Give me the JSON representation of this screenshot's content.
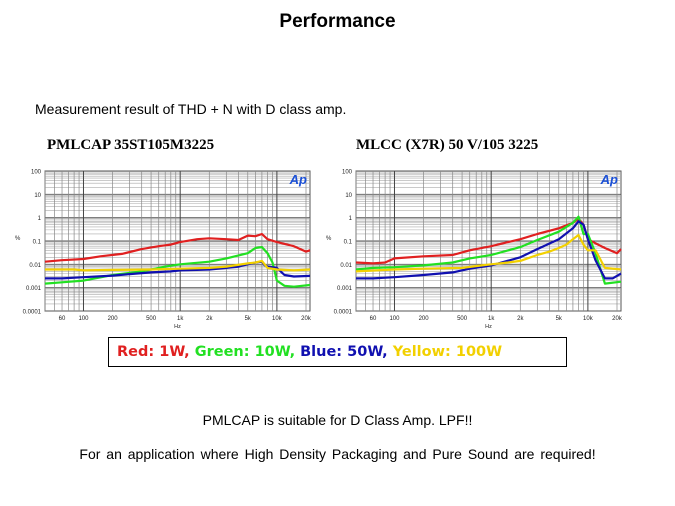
{
  "page": {
    "title": "Performance",
    "subtitle": "Measurement result of THD + N with D class amp.",
    "note1": "PMLCAP is suitable for D Class Amp. LPF!!",
    "note2": "For an application where High Density Packaging and Pure Sound are required!"
  },
  "legend": [
    {
      "text": "Red: 1W, ",
      "color": "#e02020"
    },
    {
      "text": "Green: 10W, ",
      "color": "#22e022"
    },
    {
      "text": "Blue: 50W, ",
      "color": "#1010b0"
    },
    {
      "text": "Yellow: 100W",
      "color": "#f2d000"
    }
  ],
  "chart_data": [
    {
      "type": "line",
      "title": "PMLCAP 35ST105M3225",
      "xlabel": "Hz",
      "ylabel": "%",
      "xscale": "log",
      "yscale": "log",
      "xlim": [
        40,
        22000
      ],
      "ylim": [
        0.0001,
        100
      ],
      "xticks": [
        {
          "v": 60,
          "t": "60"
        },
        {
          "v": 100,
          "t": "100"
        },
        {
          "v": 200,
          "t": "200"
        },
        {
          "v": 500,
          "t": "500"
        },
        {
          "v": 1000,
          "t": "1k"
        },
        {
          "v": 2000,
          "t": "2k"
        },
        {
          "v": 5000,
          "t": "5k"
        },
        {
          "v": 10000,
          "t": "10k"
        },
        {
          "v": 20000,
          "t": "20k"
        }
      ],
      "yticks": [
        {
          "v": 100,
          "t": "100"
        },
        {
          "v": 10,
          "t": "10"
        },
        {
          "v": 1,
          "t": "1"
        },
        {
          "v": 0.1,
          "t": "0.1"
        },
        {
          "v": 0.01,
          "t": "0.01"
        },
        {
          "v": 0.001,
          "t": "0.001"
        },
        {
          "v": 0.0001,
          "t": "0.0001"
        }
      ],
      "logo": "Ap",
      "grid": true,
      "series": [
        {
          "color": "#e02020",
          "points": [
            [
              40,
              0.013
            ],
            [
              60,
              0.015
            ],
            [
              100,
              0.017
            ],
            [
              150,
              0.022
            ],
            [
              250,
              0.028
            ],
            [
              400,
              0.045
            ],
            [
              600,
              0.06
            ],
            [
              800,
              0.07
            ],
            [
              1000,
              0.09
            ],
            [
              1500,
              0.12
            ],
            [
              2000,
              0.13
            ],
            [
              3000,
              0.12
            ],
            [
              4000,
              0.11
            ],
            [
              5000,
              0.17
            ],
            [
              6000,
              0.16
            ],
            [
              7000,
              0.2
            ],
            [
              8000,
              0.12
            ],
            [
              10000,
              0.09
            ],
            [
              15000,
              0.06
            ],
            [
              20000,
              0.035
            ],
            [
              22000,
              0.04
            ]
          ]
        },
        {
          "color": "#22e022",
          "points": [
            [
              40,
              0.0015
            ],
            [
              60,
              0.0017
            ],
            [
              100,
              0.002
            ],
            [
              200,
              0.0035
            ],
            [
              400,
              0.005
            ],
            [
              700,
              0.008
            ],
            [
              1000,
              0.01
            ],
            [
              2000,
              0.013
            ],
            [
              3000,
              0.018
            ],
            [
              5000,
              0.03
            ],
            [
              6000,
              0.05
            ],
            [
              7000,
              0.055
            ],
            [
              8000,
              0.03
            ],
            [
              9000,
              0.012
            ],
            [
              10000,
              0.002
            ],
            [
              12000,
              0.0012
            ],
            [
              15000,
              0.0011
            ],
            [
              22000,
              0.0013
            ]
          ]
        },
        {
          "color": "#1010b0",
          "points": [
            [
              40,
              0.0025
            ],
            [
              60,
              0.0025
            ],
            [
              100,
              0.0028
            ],
            [
              200,
              0.0033
            ],
            [
              300,
              0.0038
            ],
            [
              500,
              0.0045
            ],
            [
              800,
              0.005
            ],
            [
              1000,
              0.0055
            ],
            [
              2000,
              0.006
            ],
            [
              3000,
              0.007
            ],
            [
              4000,
              0.008
            ],
            [
              5000,
              0.01
            ],
            [
              6000,
              0.012
            ],
            [
              7000,
              0.013
            ],
            [
              7500,
              0.009
            ],
            [
              8000,
              0.008
            ],
            [
              10000,
              0.007
            ],
            [
              12000,
              0.0035
            ],
            [
              15000,
              0.003
            ],
            [
              22000,
              0.0032
            ]
          ]
        },
        {
          "color": "#f2d000",
          "points": [
            [
              40,
              0.006
            ],
            [
              80,
              0.006
            ],
            [
              100,
              0.0055
            ],
            [
              200,
              0.0058
            ],
            [
              500,
              0.006
            ],
            [
              1000,
              0.0065
            ],
            [
              2000,
              0.007
            ],
            [
              3000,
              0.008
            ],
            [
              5000,
              0.011
            ],
            [
              6000,
              0.012
            ],
            [
              7000,
              0.014
            ],
            [
              8000,
              0.007
            ],
            [
              10000,
              0.006
            ],
            [
              15000,
              0.0055
            ],
            [
              22000,
              0.006
            ]
          ]
        }
      ]
    },
    {
      "type": "line",
      "title": "MLCC (X7R) 50 V/105 3225",
      "xlabel": "Hz",
      "ylabel": "%",
      "xscale": "log",
      "yscale": "log",
      "xlim": [
        40,
        22000
      ],
      "ylim": [
        0.0001,
        100
      ],
      "xticks": [
        {
          "v": 60,
          "t": "60"
        },
        {
          "v": 100,
          "t": "100"
        },
        {
          "v": 200,
          "t": "200"
        },
        {
          "v": 500,
          "t": "500"
        },
        {
          "v": 1000,
          "t": "1k"
        },
        {
          "v": 2000,
          "t": "2k"
        },
        {
          "v": 5000,
          "t": "5k"
        },
        {
          "v": 10000,
          "t": "10k"
        },
        {
          "v": 20000,
          "t": "20k"
        }
      ],
      "yticks": [
        {
          "v": 100,
          "t": "100"
        },
        {
          "v": 10,
          "t": "10"
        },
        {
          "v": 1,
          "t": "1"
        },
        {
          "v": 0.1,
          "t": "0.1"
        },
        {
          "v": 0.01,
          "t": "0.01"
        },
        {
          "v": 0.001,
          "t": "0.001"
        },
        {
          "v": 0.0001,
          "t": "0.0001"
        }
      ],
      "logo": "Ap",
      "grid": true,
      "series": [
        {
          "color": "#e02020",
          "points": [
            [
              40,
              0.012
            ],
            [
              60,
              0.011
            ],
            [
              80,
              0.012
            ],
            [
              100,
              0.018
            ],
            [
              200,
              0.022
            ],
            [
              400,
              0.025
            ],
            [
              600,
              0.04
            ],
            [
              1000,
              0.06
            ],
            [
              2000,
              0.12
            ],
            [
              3000,
              0.2
            ],
            [
              5000,
              0.35
            ],
            [
              7000,
              0.6
            ],
            [
              8000,
              0.9
            ],
            [
              9000,
              0.5
            ],
            [
              10000,
              0.12
            ],
            [
              12000,
              0.08
            ],
            [
              15000,
              0.05
            ],
            [
              20000,
              0.03
            ],
            [
              22000,
              0.045
            ]
          ]
        },
        {
          "color": "#22e022",
          "points": [
            [
              40,
              0.006
            ],
            [
              60,
              0.007
            ],
            [
              100,
              0.0075
            ],
            [
              200,
              0.009
            ],
            [
              400,
              0.012
            ],
            [
              600,
              0.018
            ],
            [
              1000,
              0.025
            ],
            [
              2000,
              0.055
            ],
            [
              3000,
              0.11
            ],
            [
              5000,
              0.25
            ],
            [
              7000,
              0.6
            ],
            [
              8000,
              1.1
            ],
            [
              9000,
              0.2
            ],
            [
              10000,
              0.2
            ],
            [
              12000,
              0.03
            ],
            [
              15000,
              0.0015
            ],
            [
              22000,
              0.0018
            ]
          ]
        },
        {
          "color": "#1010b0",
          "points": [
            [
              40,
              0.0025
            ],
            [
              60,
              0.0025
            ],
            [
              100,
              0.0028
            ],
            [
              200,
              0.0035
            ],
            [
              400,
              0.0045
            ],
            [
              600,
              0.0065
            ],
            [
              1000,
              0.009
            ],
            [
              2000,
              0.02
            ],
            [
              3000,
              0.045
            ],
            [
              5000,
              0.12
            ],
            [
              7000,
              0.35
            ],
            [
              8000,
              0.7
            ],
            [
              9000,
              0.5
            ],
            [
              10000,
              0.12
            ],
            [
              12000,
              0.015
            ],
            [
              15000,
              0.0025
            ],
            [
              18000,
              0.0025
            ],
            [
              22000,
              0.004
            ]
          ]
        },
        {
          "color": "#f2d000",
          "points": [
            [
              40,
              0.005
            ],
            [
              100,
              0.006
            ],
            [
              200,
              0.0065
            ],
            [
              500,
              0.007
            ],
            [
              800,
              0.009
            ],
            [
              1000,
              0.01
            ],
            [
              1500,
              0.012
            ],
            [
              2000,
              0.014
            ],
            [
              3000,
              0.025
            ],
            [
              4000,
              0.035
            ],
            [
              5000,
              0.05
            ],
            [
              6000,
              0.07
            ],
            [
              7000,
              0.12
            ],
            [
              8000,
              0.18
            ],
            [
              9000,
              0.07
            ],
            [
              10000,
              0.04
            ],
            [
              12000,
              0.04
            ],
            [
              15000,
              0.007
            ],
            [
              22000,
              0.006
            ]
          ]
        }
      ]
    }
  ]
}
